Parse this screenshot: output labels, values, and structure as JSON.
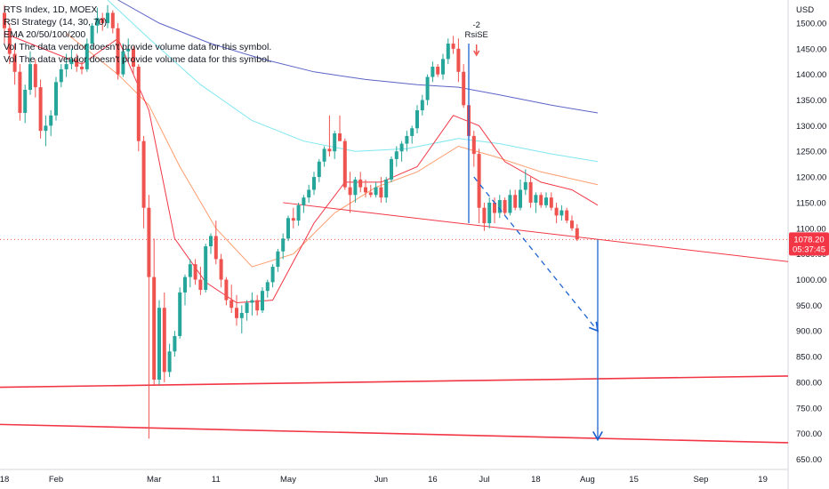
{
  "legend": {
    "line1": "RTS Index, 1D, MOEX",
    "line2": "RSI Strategy (14, 30, 70)",
    "line3": "EMA 20/50/100/200",
    "line4": "Vol The data vendor doesn't provide volume data for this symbol.",
    "line5": "Vol The data vendor doesn't provide volume data for this symbol."
  },
  "currency": "USD",
  "price_tag": {
    "value": "1078.20",
    "timer": "05:37:45",
    "color": "#f23645"
  },
  "signal": {
    "count": "-2",
    "label": "RsiSE"
  },
  "colors": {
    "up": "#26a69a",
    "down": "#ef5350",
    "ema20": "#f23645",
    "ema50": "#ff9d6e",
    "ema100": "#7fe7f0",
    "ema200": "#5b63c6",
    "trend": "#f23645",
    "arrow": "#1e63d1"
  },
  "chart_data": {
    "type": "candlestick",
    "title": "RTS Index, 1D, MOEX",
    "y_axis": {
      "label": "USD",
      "ticks": [
        650,
        700,
        750,
        800,
        850,
        900,
        950,
        1000,
        1050,
        1100,
        1150,
        1200,
        1250,
        1300,
        1350,
        1400,
        1450,
        1500
      ],
      "range": [
        630,
        1545
      ]
    },
    "x_axis": {
      "ticks": [
        {
          "label": "18",
          "index": 0
        },
        {
          "label": "Feb",
          "index": 10
        },
        {
          "label": "Mar",
          "index": 29
        },
        {
          "label": "11",
          "index": 41
        },
        {
          "label": "May",
          "index": 55
        },
        {
          "label": "Jun",
          "index": 73
        },
        {
          "label": "16",
          "index": 83
        },
        {
          "label": "Jul",
          "index": 93
        },
        {
          "label": "18",
          "index": 103
        },
        {
          "label": "Aug",
          "index": 113
        },
        {
          "label": "15",
          "index": 122
        },
        {
          "label": "Sep",
          "index": 135
        },
        {
          "label": "19",
          "index": 147
        }
      ]
    },
    "last_price": 1078.2,
    "ohlc": [
      [
        1520,
        1535,
        1460,
        1490
      ],
      [
        1490,
        1500,
        1420,
        1440
      ],
      [
        1440,
        1460,
        1380,
        1405
      ],
      [
        1405,
        1420,
        1310,
        1325
      ],
      [
        1325,
        1380,
        1305,
        1370
      ],
      [
        1370,
        1445,
        1360,
        1420
      ],
      [
        1420,
        1430,
        1355,
        1375
      ],
      [
        1375,
        1390,
        1275,
        1290
      ],
      [
        1290,
        1320,
        1260,
        1300
      ],
      [
        1300,
        1330,
        1280,
        1320
      ],
      [
        1320,
        1395,
        1310,
        1385
      ],
      [
        1385,
        1420,
        1375,
        1410
      ],
      [
        1410,
        1440,
        1395,
        1420
      ],
      [
        1420,
        1450,
        1410,
        1430
      ],
      [
        1430,
        1440,
        1405,
        1415
      ],
      [
        1415,
        1425,
        1400,
        1410
      ],
      [
        1410,
        1470,
        1405,
        1460
      ],
      [
        1460,
        1500,
        1450,
        1495
      ],
      [
        1495,
        1530,
        1480,
        1510
      ],
      [
        1510,
        1520,
        1485,
        1500
      ],
      [
        1500,
        1535,
        1490,
        1520
      ],
      [
        1520,
        1525,
        1480,
        1490
      ],
      [
        1490,
        1500,
        1390,
        1400
      ],
      [
        1400,
        1460,
        1395,
        1445
      ],
      [
        1445,
        1470,
        1430,
        1450
      ],
      [
        1450,
        1455,
        1400,
        1415
      ],
      [
        1415,
        1420,
        1250,
        1270
      ],
      [
        1270,
        1280,
        1100,
        1140
      ],
      [
        1140,
        1165,
        690,
        1005
      ],
      [
        1005,
        1080,
        795,
        805
      ],
      [
        805,
        960,
        795,
        945
      ],
      [
        945,
        975,
        800,
        820
      ],
      [
        820,
        875,
        810,
        860
      ],
      [
        860,
        900,
        850,
        890
      ],
      [
        890,
        985,
        885,
        975
      ],
      [
        975,
        1010,
        950,
        1005
      ],
      [
        1005,
        1040,
        985,
        1030
      ],
      [
        1030,
        1040,
        990,
        1000
      ],
      [
        1000,
        1025,
        970,
        980
      ],
      [
        980,
        1070,
        975,
        1065
      ],
      [
        1065,
        1090,
        1050,
        1085
      ],
      [
        1085,
        1115,
        1030,
        1040
      ],
      [
        1040,
        1050,
        985,
        1000
      ],
      [
        1000,
        1005,
        950,
        960
      ],
      [
        960,
        990,
        935,
        945
      ],
      [
        945,
        970,
        910,
        925
      ],
      [
        925,
        950,
        895,
        935
      ],
      [
        935,
        960,
        920,
        955
      ],
      [
        955,
        975,
        930,
        960
      ],
      [
        960,
        970,
        930,
        940
      ],
      [
        940,
        985,
        935,
        978
      ],
      [
        978,
        1000,
        965,
        995
      ],
      [
        995,
        1030,
        985,
        1025
      ],
      [
        1025,
        1060,
        1015,
        1055
      ],
      [
        1055,
        1090,
        1040,
        1080
      ],
      [
        1080,
        1125,
        1075,
        1120
      ],
      [
        1120,
        1140,
        1100,
        1115
      ],
      [
        1115,
        1150,
        1105,
        1145
      ],
      [
        1145,
        1165,
        1130,
        1160
      ],
      [
        1160,
        1185,
        1150,
        1175
      ],
      [
        1175,
        1210,
        1165,
        1200
      ],
      [
        1200,
        1235,
        1190,
        1230
      ],
      [
        1230,
        1260,
        1220,
        1255
      ],
      [
        1255,
        1320,
        1240,
        1250
      ],
      [
        1250,
        1290,
        1235,
        1285
      ],
      [
        1285,
        1320,
        1270,
        1270
      ],
      [
        1270,
        1275,
        1175,
        1180
      ],
      [
        1180,
        1210,
        1130,
        1165
      ],
      [
        1165,
        1200,
        1150,
        1195
      ],
      [
        1195,
        1210,
        1170,
        1180
      ],
      [
        1180,
        1195,
        1160,
        1170
      ],
      [
        1170,
        1185,
        1160,
        1165
      ],
      [
        1165,
        1190,
        1160,
        1180
      ],
      [
        1180,
        1200,
        1150,
        1160
      ],
      [
        1160,
        1200,
        1150,
        1195
      ],
      [
        1195,
        1240,
        1190,
        1235
      ],
      [
        1235,
        1260,
        1220,
        1250
      ],
      [
        1250,
        1270,
        1230,
        1265
      ],
      [
        1265,
        1290,
        1250,
        1280
      ],
      [
        1280,
        1300,
        1265,
        1295
      ],
      [
        1295,
        1340,
        1285,
        1330
      ],
      [
        1330,
        1360,
        1320,
        1350
      ],
      [
        1350,
        1400,
        1340,
        1395
      ],
      [
        1395,
        1425,
        1385,
        1415
      ],
      [
        1415,
        1420,
        1395,
        1400
      ],
      [
        1400,
        1440,
        1390,
        1430
      ],
      [
        1430,
        1470,
        1420,
        1460
      ],
      [
        1460,
        1475,
        1440,
        1450
      ],
      [
        1450,
        1470,
        1385,
        1405
      ],
      [
        1405,
        1420,
        1335,
        1340
      ],
      [
        1340,
        1360,
        1270,
        1280
      ],
      [
        1280,
        1290,
        1220,
        1245
      ],
      [
        1245,
        1255,
        1110,
        1140
      ],
      [
        1140,
        1150,
        1095,
        1110
      ],
      [
        1110,
        1160,
        1100,
        1150
      ],
      [
        1150,
        1160,
        1110,
        1130
      ],
      [
        1130,
        1165,
        1120,
        1155
      ],
      [
        1155,
        1160,
        1125,
        1130
      ],
      [
        1130,
        1175,
        1125,
        1165
      ],
      [
        1165,
        1175,
        1135,
        1140
      ],
      [
        1140,
        1195,
        1135,
        1175
      ],
      [
        1175,
        1215,
        1165,
        1190
      ],
      [
        1190,
        1200,
        1140,
        1150
      ],
      [
        1150,
        1170,
        1130,
        1165
      ],
      [
        1165,
        1170,
        1140,
        1145
      ],
      [
        1145,
        1170,
        1140,
        1160
      ],
      [
        1160,
        1170,
        1135,
        1140
      ],
      [
        1140,
        1150,
        1110,
        1125
      ],
      [
        1125,
        1145,
        1115,
        1135
      ],
      [
        1135,
        1140,
        1110,
        1115
      ],
      [
        1115,
        1125,
        1095,
        1100
      ],
      [
        1100,
        1108,
        1075,
        1078.2
      ]
    ],
    "ema20": [
      [
        0,
        1480
      ],
      [
        15,
        1420
      ],
      [
        22,
        1470
      ],
      [
        28,
        1330
      ],
      [
        33,
        1080
      ],
      [
        39,
        995
      ],
      [
        45,
        955
      ],
      [
        52,
        960
      ],
      [
        60,
        1110
      ],
      [
        66,
        1190
      ],
      [
        73,
        1190
      ],
      [
        80,
        1220
      ],
      [
        87,
        1320
      ],
      [
        92,
        1300
      ],
      [
        97,
        1230
      ],
      [
        104,
        1190
      ],
      [
        110,
        1175
      ],
      [
        115,
        1145
      ]
    ],
    "ema50": [
      [
        12,
        1480
      ],
      [
        22,
        1400
      ],
      [
        28,
        1340
      ],
      [
        34,
        1220
      ],
      [
        41,
        1100
      ],
      [
        48,
        1025
      ],
      [
        56,
        1050
      ],
      [
        64,
        1130
      ],
      [
        72,
        1180
      ],
      [
        80,
        1210
      ],
      [
        88,
        1260
      ],
      [
        95,
        1240
      ],
      [
        104,
        1210
      ],
      [
        115,
        1185
      ]
    ],
    "ema100": [
      [
        20,
        1545
      ],
      [
        28,
        1470
      ],
      [
        38,
        1380
      ],
      [
        48,
        1310
      ],
      [
        58,
        1270
      ],
      [
        68,
        1250
      ],
      [
        78,
        1255
      ],
      [
        88,
        1275
      ],
      [
        96,
        1265
      ],
      [
        106,
        1245
      ],
      [
        115,
        1230
      ]
    ],
    "ema200": [
      [
        22,
        1545
      ],
      [
        30,
        1500
      ],
      [
        40,
        1460
      ],
      [
        50,
        1430
      ],
      [
        60,
        1405
      ],
      [
        70,
        1390
      ],
      [
        80,
        1380
      ],
      [
        88,
        1375
      ],
      [
        96,
        1360
      ],
      [
        106,
        1340
      ],
      [
        115,
        1325
      ]
    ],
    "trendlines": [
      {
        "from": [
          54,
          1150
        ],
        "to": [
          152,
          1035
        ]
      },
      {
        "from": [
          -2,
          790
        ],
        "to": [
          152,
          812
        ]
      },
      {
        "from": [
          -2,
          718
        ],
        "to": [
          152,
          682
        ]
      }
    ],
    "projections": [
      {
        "from": [
          91,
          1200
        ],
        "to": [
          115,
          900
        ],
        "style": "dashed"
      },
      {
        "from": [
          115,
          1078
        ],
        "to": [
          115,
          688
        ],
        "style": "solid"
      }
    ],
    "signal_line": {
      "index": 90,
      "from": 1110,
      "to": 1460
    }
  }
}
